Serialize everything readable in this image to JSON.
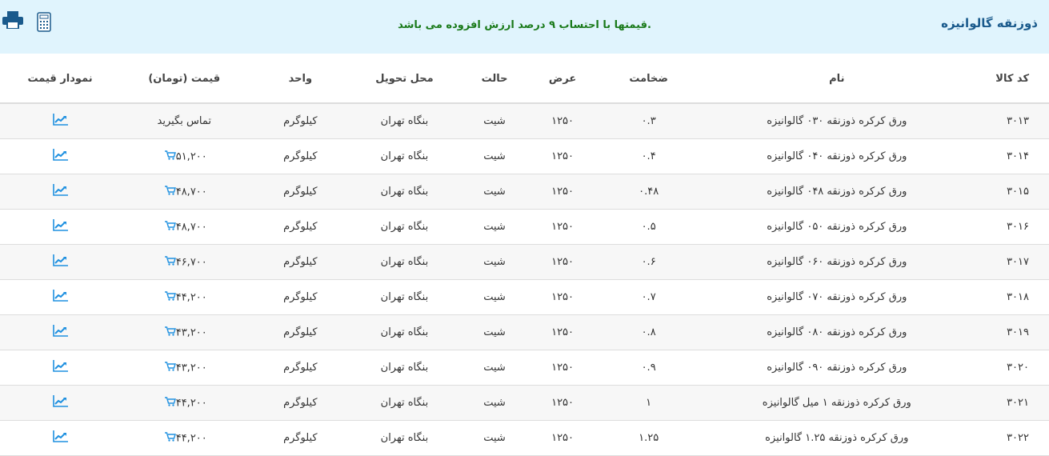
{
  "header": {
    "title": "ذوزنقه گالوانیزه",
    "notice": "قیمتها با احتساب ۹ درصد ارزش افزوده می باشد.",
    "icons": [
      "print-icon",
      "calculator-icon"
    ]
  },
  "colors": {
    "header_bg": "#e0f4fd",
    "title": "#1a5a8c",
    "notice": "#1a7a1a",
    "icon_blue": "#1e90e0"
  },
  "table": {
    "columns": [
      "کد کالا",
      "نام",
      "ضخامت",
      "عرض",
      "حالت",
      "محل تحویل",
      "واحد",
      "قیمت (تومان)",
      "نمودار قیمت"
    ],
    "rows": [
      {
        "code": "۳۰۱۳",
        "name": "ورق کرکره ذوزنقه ۰۳۰ گالوانیزه",
        "thickness": "۰.۳",
        "width": "۱۲۵۰",
        "state": "شیت",
        "delivery": "بنگاه تهران",
        "unit": "کیلوگرم",
        "price": "تماس بگیرید",
        "cart": false
      },
      {
        "code": "۳۰۱۴",
        "name": "ورق کرکره ذوزنقه ۰۴۰ گالوانیزه",
        "thickness": "۰.۴",
        "width": "۱۲۵۰",
        "state": "شیت",
        "delivery": "بنگاه تهران",
        "unit": "کیلوگرم",
        "price": "۵۱,۲۰۰",
        "cart": true
      },
      {
        "code": "۳۰۱۵",
        "name": "ورق کرکره ذوزنقه ۰۴۸ گالوانیزه",
        "thickness": "۰.۴۸",
        "width": "۱۲۵۰",
        "state": "شیت",
        "delivery": "بنگاه تهران",
        "unit": "کیلوگرم",
        "price": "۴۸,۷۰۰",
        "cart": true
      },
      {
        "code": "۳۰۱۶",
        "name": "ورق کرکره ذوزنقه ۰۵۰ گالوانیزه",
        "thickness": "۰.۵",
        "width": "۱۲۵۰",
        "state": "شیت",
        "delivery": "بنگاه تهران",
        "unit": "کیلوگرم",
        "price": "۴۸,۷۰۰",
        "cart": true
      },
      {
        "code": "۳۰۱۷",
        "name": "ورق کرکره ذوزنقه ۰۶۰ گالوانیزه",
        "thickness": "۰.۶",
        "width": "۱۲۵۰",
        "state": "شیت",
        "delivery": "بنگاه تهران",
        "unit": "کیلوگرم",
        "price": "۴۶,۷۰۰",
        "cart": true
      },
      {
        "code": "۳۰۱۸",
        "name": "ورق کرکره ذوزنقه ۰۷۰ گالوانیزه",
        "thickness": "۰.۷",
        "width": "۱۲۵۰",
        "state": "شیت",
        "delivery": "بنگاه تهران",
        "unit": "کیلوگرم",
        "price": "۴۴,۲۰۰",
        "cart": true
      },
      {
        "code": "۳۰۱۹",
        "name": "ورق کرکره ذوزنقه ۰۸۰ گالوانیزه",
        "thickness": "۰.۸",
        "width": "۱۲۵۰",
        "state": "شیت",
        "delivery": "بنگاه تهران",
        "unit": "کیلوگرم",
        "price": "۴۳,۲۰۰",
        "cart": true
      },
      {
        "code": "۳۰۲۰",
        "name": "ورق کرکره ذوزنقه ۰۹۰ گالوانیزه",
        "thickness": "۰.۹",
        "width": "۱۲۵۰",
        "state": "شیت",
        "delivery": "بنگاه تهران",
        "unit": "کیلوگرم",
        "price": "۴۳,۲۰۰",
        "cart": true
      },
      {
        "code": "۳۰۲۱",
        "name": "ورق کرکره ذوزنقه ۱ میل گالوانیزه",
        "thickness": "۱",
        "width": "۱۲۵۰",
        "state": "شیت",
        "delivery": "بنگاه تهران",
        "unit": "کیلوگرم",
        "price": "۴۴,۲۰۰",
        "cart": true
      },
      {
        "code": "۳۰۲۲",
        "name": "ورق کرکره ذوزنقه ۱.۲۵ گالوانیزه",
        "thickness": "۱.۲۵",
        "width": "۱۲۵۰",
        "state": "شیت",
        "delivery": "بنگاه تهران",
        "unit": "کیلوگرم",
        "price": "۴۴,۲۰۰",
        "cart": true
      }
    ]
  }
}
